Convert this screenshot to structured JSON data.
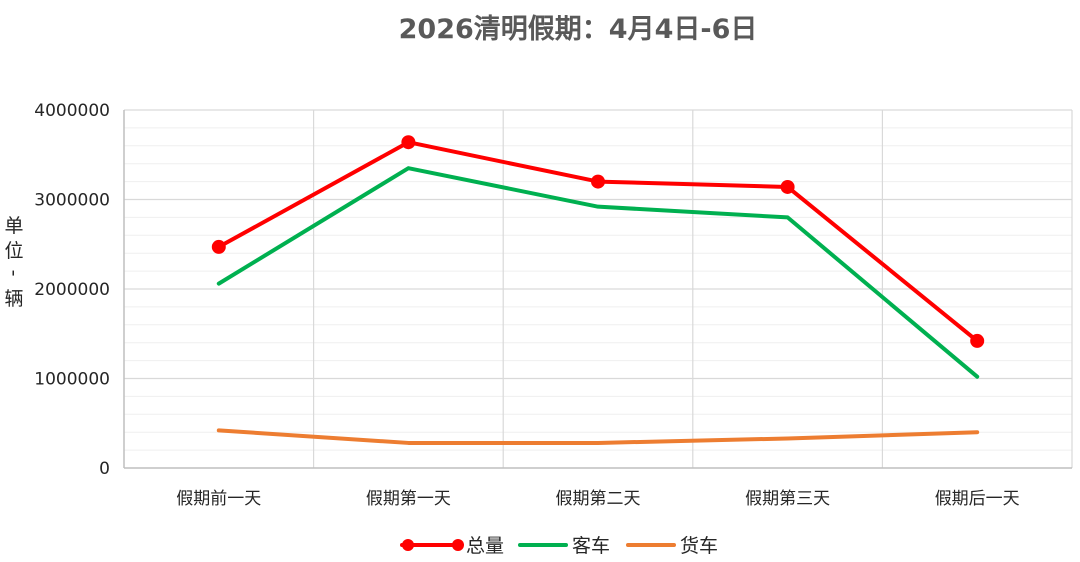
{
  "chart_data": {
    "type": "line",
    "title": "2026清明假期：4月4日-6日",
    "xlabel": "",
    "ylabel_chars": [
      "单",
      "位",
      "-",
      "辆"
    ],
    "categories": [
      "假期前一天",
      "假期第一天",
      "假期第二天",
      "假期第三天",
      "假期后一天"
    ],
    "ylim": [
      0,
      4000000
    ],
    "y_ticks": [
      0,
      1000000,
      2000000,
      3000000,
      4000000
    ],
    "y_tick_labels": [
      "0",
      "1000000",
      "2000000",
      "3000000",
      "4000000"
    ],
    "grid": true,
    "legend_position": "bottom",
    "series": [
      {
        "name": "总量",
        "color": "#ff0000",
        "markers": true,
        "values": [
          2470000,
          3640000,
          3200000,
          3140000,
          1420000
        ]
      },
      {
        "name": "客车",
        "color": "#00b050",
        "markers": false,
        "values": [
          2060000,
          3350000,
          2920000,
          2800000,
          1020000
        ]
      },
      {
        "name": "货车",
        "color": "#ed7d31",
        "markers": false,
        "values": [
          420000,
          280000,
          280000,
          330000,
          400000
        ]
      }
    ]
  }
}
